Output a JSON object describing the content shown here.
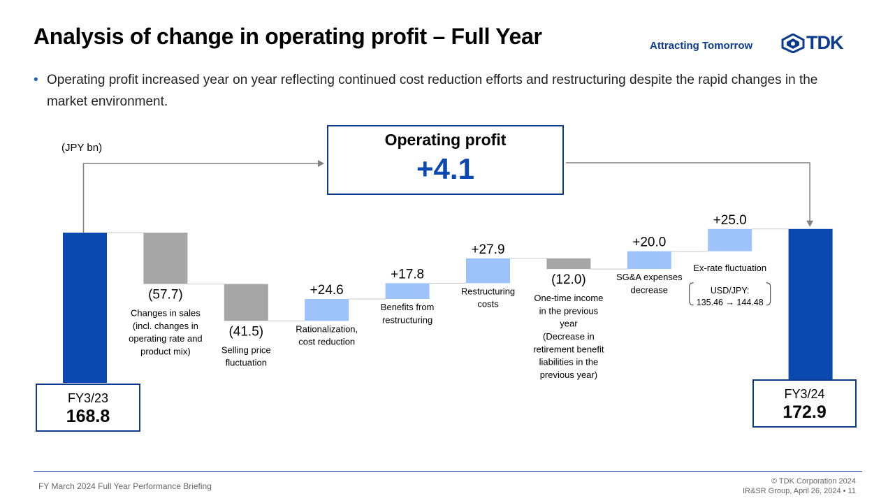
{
  "header": {
    "title": "Analysis of change in operating profit – Full Year",
    "tagline": "Attracting Tomorrow",
    "logo_text": "TDK"
  },
  "bullet": "Operating profit increased year on year reflecting continued cost reduction efforts and restructuring despite the rapid changes in the market environment.",
  "unit_label": "(JPY bn)",
  "operating_profit": {
    "title": "Operating profit",
    "value": "+4.1"
  },
  "start_box": {
    "label": "FY3/23",
    "value": "168.8"
  },
  "end_box": {
    "label": "FY3/24",
    "value": "172.9"
  },
  "chart_data": {
    "type": "waterfall",
    "unit": "JPY bn",
    "start": {
      "label": "FY3/23",
      "value": 168.8
    },
    "end": {
      "label": "FY3/24",
      "value": 172.9
    },
    "steps": [
      {
        "value": -57.7,
        "value_label": "(57.7)",
        "label_lines": [
          "Changes in sales",
          "(incl. changes in",
          "operating rate and",
          "product mix)"
        ]
      },
      {
        "value": -41.5,
        "value_label": "(41.5)",
        "label_lines": [
          "Selling price",
          "fluctuation"
        ]
      },
      {
        "value": 24.6,
        "value_label": "+24.6",
        "label_lines": [
          "Rationalization,",
          "cost reduction"
        ]
      },
      {
        "value": 17.8,
        "value_label": "+17.8",
        "label_lines": [
          "Benefits from",
          "restructuring"
        ]
      },
      {
        "value": 27.9,
        "value_label": "+27.9",
        "label_lines": [
          "Restructuring",
          "costs"
        ]
      },
      {
        "value": -12.0,
        "value_label": "(12.0)",
        "label_lines": [
          "One-time income",
          "in the previous",
          "year",
          "(Decrease in",
          "retirement benefit",
          "liabilities in the",
          "previous year)"
        ]
      },
      {
        "value": 20.0,
        "value_label": "+20.0",
        "label_lines": [
          "SG&A expenses",
          "decrease"
        ]
      },
      {
        "value": 25.0,
        "value_label": "+25.0",
        "label_lines": [
          "Ex-rate fluctuation"
        ],
        "note_lines": [
          "USD/JPY:",
          "135.46 → 144.48"
        ]
      }
    ],
    "colors": {
      "total": "#0b48b0",
      "decrease": "#a6a6a6",
      "increase": "#9ec3fb",
      "connector": "#c8c8c8",
      "arrow": "#808080"
    }
  },
  "footer": {
    "left": "FY March 2024 Full Year Performance Briefing",
    "right_line1": "© TDK Corporation 2024",
    "right_line2": "IR&SR Group, April 26, 2024 • 11"
  }
}
